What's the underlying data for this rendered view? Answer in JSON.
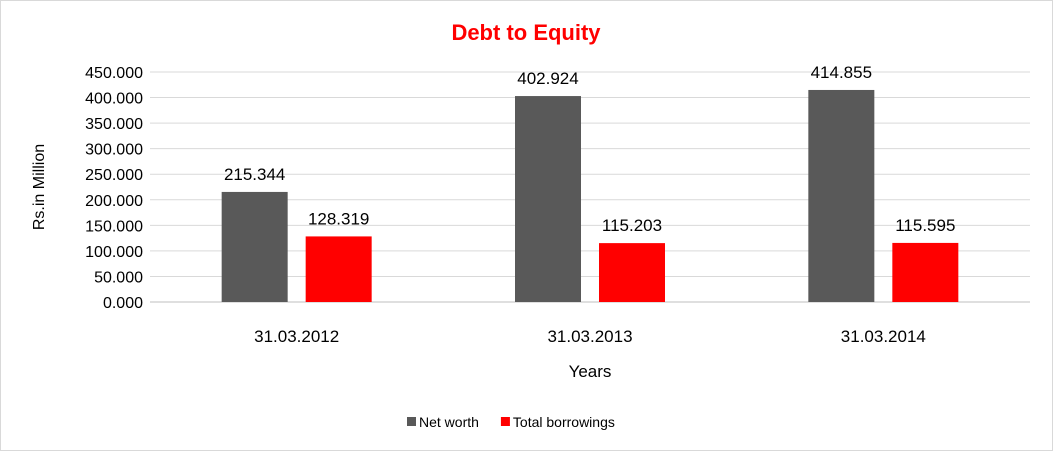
{
  "chart_data": {
    "type": "bar",
    "title": "Debt to Equity",
    "title_color": "#ff0000",
    "xlabel": "Years",
    "ylabel": "Rs.in Million",
    "categories": [
      "31.03.2012",
      "31.03.2013",
      "31.03.2014"
    ],
    "series": [
      {
        "name": "Net worth",
        "color": "#595959",
        "values": [
          215.344,
          402.924,
          414.855
        ],
        "labels": [
          "215.344",
          "402.924",
          "414.855"
        ]
      },
      {
        "name": "Total borrowings",
        "color": "#ff0000",
        "values": [
          128.319,
          115.203,
          115.595
        ],
        "labels": [
          "128.319",
          "115.203",
          "115.595"
        ]
      }
    ],
    "ylim": [
      0,
      450
    ],
    "yticks": [
      "0.000",
      "50.000",
      "100.000",
      "150.000",
      "200.000",
      "250.000",
      "300.000",
      "350.000",
      "400.000",
      "450.000"
    ],
    "grid": true,
    "legend": "bottom"
  }
}
